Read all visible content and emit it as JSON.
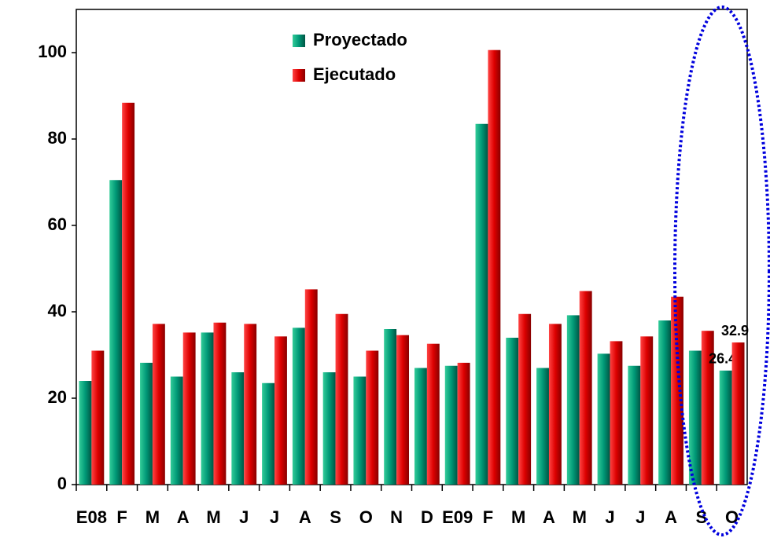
{
  "chart_data": {
    "type": "bar",
    "categories": [
      "E08",
      "F",
      "M",
      "A",
      "M",
      "J",
      "J",
      "A",
      "S",
      "O",
      "N",
      "D",
      "E09",
      "F",
      "M",
      "A",
      "M",
      "J",
      "J",
      "A",
      "S",
      "O"
    ],
    "series": [
      {
        "name": "Proyectado",
        "color": "#009977",
        "values": [
          24,
          70.5,
          28.2,
          25,
          35.2,
          26,
          23.5,
          36.3,
          26,
          25,
          36,
          27,
          27.5,
          83.5,
          34,
          27,
          39.2,
          30.3,
          27.5,
          38,
          31,
          26.4
        ],
        "value_labels": [
          null,
          null,
          null,
          null,
          null,
          null,
          null,
          null,
          null,
          null,
          null,
          null,
          null,
          null,
          null,
          null,
          null,
          null,
          null,
          null,
          null,
          "26.4"
        ]
      },
      {
        "name": "Ejecutado",
        "color": "#dd0000",
        "values": [
          31,
          88.4,
          37.2,
          35.2,
          37.5,
          37.2,
          34.3,
          45.2,
          39.5,
          31,
          34.6,
          32.6,
          28.2,
          100.6,
          39.5,
          37.2,
          44.8,
          33.2,
          34.3,
          43.5,
          35.6,
          32.9
        ],
        "value_labels": [
          null,
          null,
          null,
          null,
          null,
          null,
          null,
          null,
          null,
          null,
          null,
          null,
          null,
          null,
          null,
          null,
          null,
          null,
          null,
          null,
          null,
          "32.9"
        ]
      }
    ],
    "ylim": [
      0,
      110
    ],
    "yticks": [
      0,
      20,
      40,
      60,
      80,
      100
    ],
    "legend": "top"
  }
}
